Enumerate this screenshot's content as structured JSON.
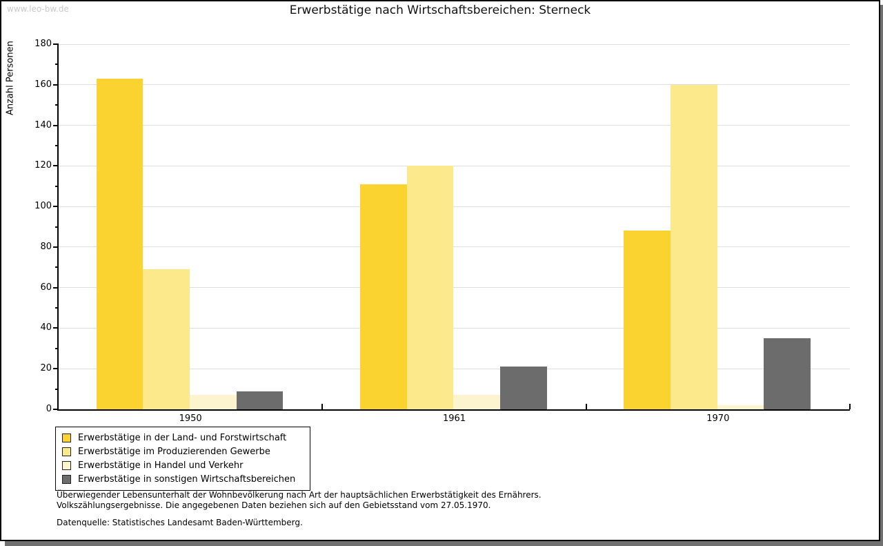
{
  "watermark": "www.leo-bw.de",
  "title": "Erwerbstätige nach Wirtschaftsbereichen: Sterneck",
  "chart_data": {
    "type": "bar",
    "title": "Erwerbstätige nach Wirtschaftsbereichen: Sterneck",
    "xlabel": "",
    "ylabel": "Anzahl Personen",
    "categories": [
      "1950",
      "1961",
      "1970"
    ],
    "series": [
      {
        "name": "Erwerbstätige in der Land- und Forstwirtschaft",
        "color": "#FBD330",
        "values": [
          163,
          111,
          88
        ]
      },
      {
        "name": "Erwerbstätige im Produzierenden Gewerbe",
        "color": "#FBE98C",
        "values": [
          69,
          120,
          160
        ]
      },
      {
        "name": "Erwerbstätige in Handel und Verkehr",
        "color": "#FCF4CF",
        "values": [
          7,
          7,
          2
        ]
      },
      {
        "name": "Erwerbstätige in sonstigen Wirtschaftsbereichen",
        "color": "#6C6C6C",
        "values": [
          9,
          21,
          35
        ]
      }
    ],
    "ylim": [
      0,
      180
    ],
    "ytick_step": 20,
    "ytick_minor_step": 10,
    "grid": true,
    "legend_position": "bottom-left",
    "gridline_color": "#dedede"
  },
  "footnote": {
    "line1": "Überwiegender Lebensunterhalt der Wohnbevölkerung nach Art der hauptsächlichen Erwerbstätigkeit des Ernährers.",
    "line2": "Volkszählungsergebnisse. Die angegebenen Daten beziehen sich auf den Gebietsstand vom 27.05.1970.",
    "source": "Datenquelle: Statistisches Landesamt Baden-Württemberg."
  }
}
